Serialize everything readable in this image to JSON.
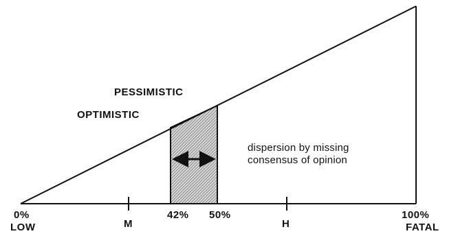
{
  "diagram": {
    "left_axis": {
      "percent": "0%",
      "word": "LOW"
    },
    "right_axis": {
      "percent": "100%",
      "word": "FATAL"
    },
    "ticks": {
      "m": "M",
      "h": "H"
    },
    "band": {
      "start": "42%",
      "end": "50%"
    },
    "labels": {
      "pessimistic": "PESSIMISTIC",
      "optimistic": "OPTIMISTIC"
    },
    "note": {
      "line1": "dispersion by missing",
      "line2": "consensus of opinion"
    },
    "colors": {
      "ink": "#111111",
      "hatch": "#555555",
      "paper": "#ffffff"
    }
  }
}
